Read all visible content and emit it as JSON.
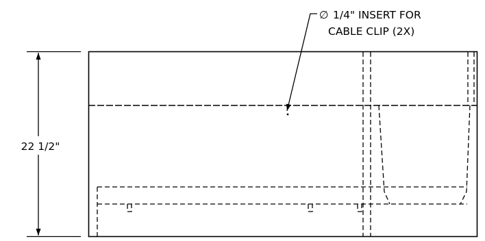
{
  "drawing": {
    "callout": {
      "symbol": "∅",
      "line1": "1/4\" INSERT FOR",
      "line2": "CABLE CLIP (2X)"
    },
    "height_dimension": {
      "text": "22 1/2\""
    },
    "colors": {
      "line": "#000000",
      "background": "#ffffff"
    }
  }
}
